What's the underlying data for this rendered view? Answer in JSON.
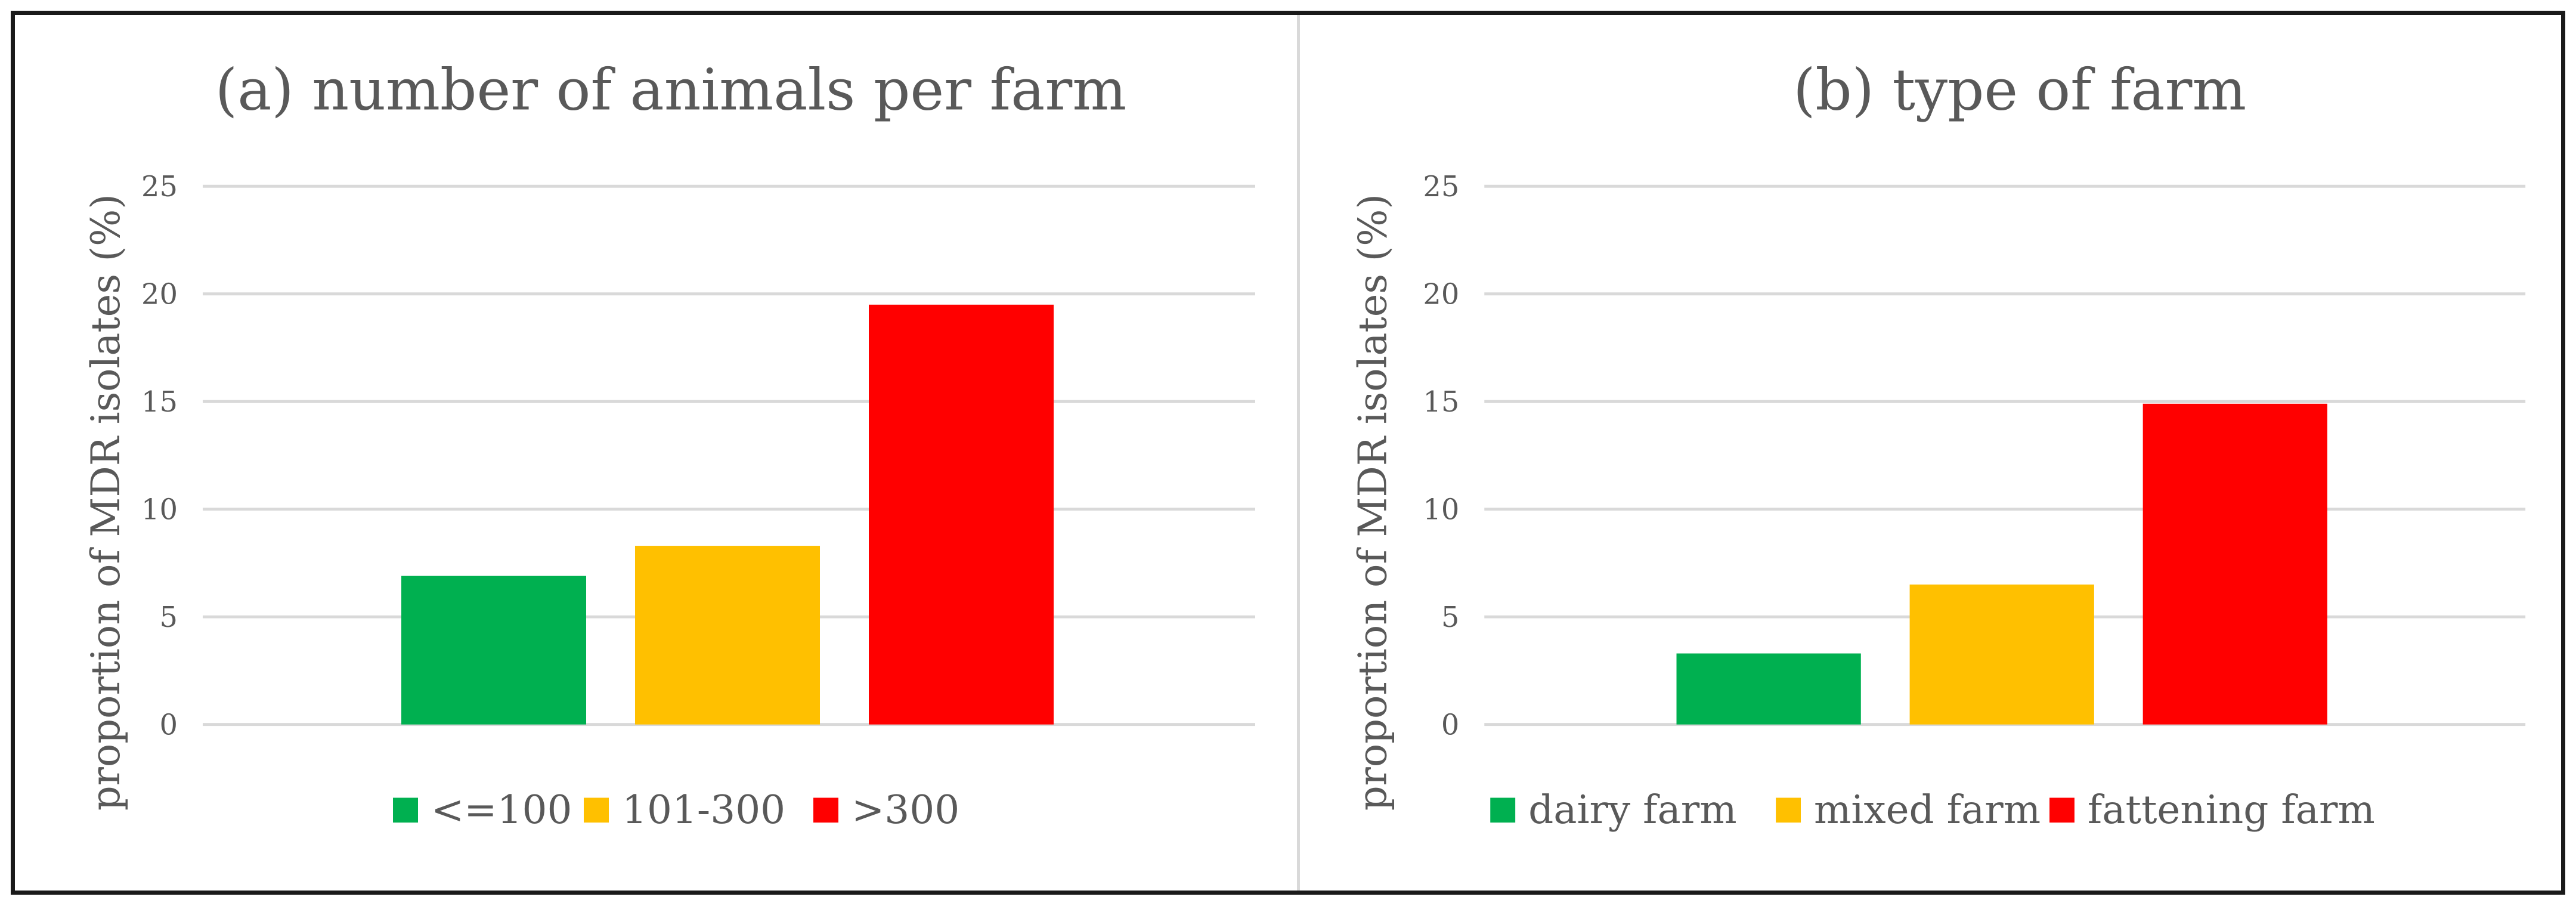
{
  "chart_data": [
    {
      "type": "bar",
      "title": "(a) number of animals per farm",
      "xlabel": "",
      "ylabel": "proportion of MDR isolates (%)",
      "ylim": [
        0,
        25
      ],
      "yticks": [
        "0",
        "5",
        "10",
        "15",
        "20",
        "25"
      ],
      "grid": true,
      "legend_position": "bottom",
      "categories": [
        "<=100",
        "101-300",
        ">300"
      ],
      "values": [
        6.9,
        8.3,
        19.5
      ],
      "colors": [
        "#00b050",
        "#ffc000",
        "#ff0000"
      ]
    },
    {
      "type": "bar",
      "title": "(b) type of farm",
      "xlabel": "",
      "ylabel": "proportion of MDR isolates (%)",
      "ylim": [
        0,
        25
      ],
      "yticks": [
        "0",
        "5",
        "10",
        "15",
        "20",
        "25"
      ],
      "grid": true,
      "legend_position": "bottom",
      "categories": [
        "dairy farm",
        "mixed farm",
        "fattening farm"
      ],
      "values": [
        3.3,
        6.5,
        14.9
      ],
      "colors": [
        "#00b050",
        "#ffc000",
        "#ff0000"
      ]
    }
  ]
}
